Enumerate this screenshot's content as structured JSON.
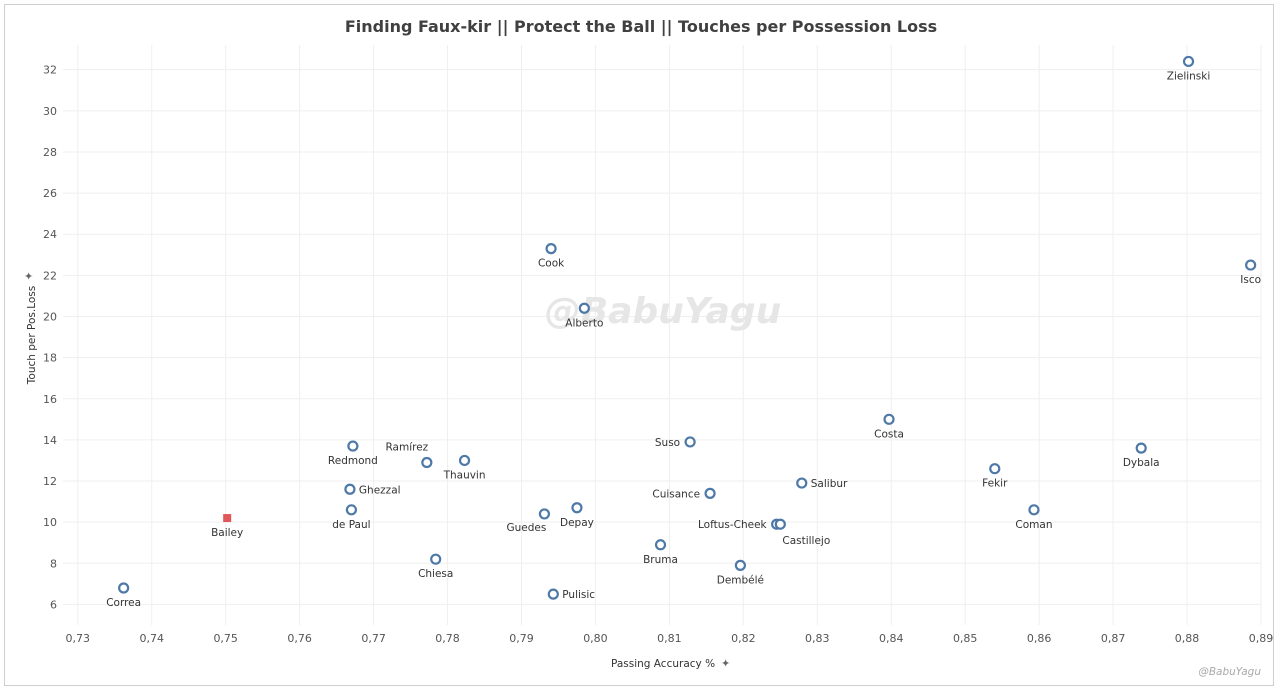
{
  "chart_data": {
    "type": "scatter",
    "title": "Finding Faux-kir  ||  Protect the Ball  ||  Touches per Possession Loss",
    "xlabel": "Passing Accuracy %",
    "ylabel": "Touch per Pos.Loss",
    "xlim": [
      0.728,
      0.89
    ],
    "ylim": [
      5,
      33.2
    ],
    "xticks": [
      0.73,
      0.74,
      0.75,
      0.76,
      0.77,
      0.78,
      0.79,
      0.8,
      0.81,
      0.82,
      0.83,
      0.84,
      0.85,
      0.86,
      0.87,
      0.88,
      0.89
    ],
    "xtick_labels": [
      "0,73",
      "0,74",
      "0,75",
      "0,76",
      "0,77",
      "0,78",
      "0,79",
      "0,80",
      "0,81",
      "0,82",
      "0,83",
      "0,84",
      "0,85",
      "0,86",
      "0,87",
      "0,88",
      "0,89"
    ],
    "yticks": [
      6,
      8,
      10,
      12,
      14,
      16,
      18,
      20,
      22,
      24,
      26,
      28,
      30,
      32
    ],
    "ytick_labels": [
      "6",
      "8",
      "10",
      "12",
      "14",
      "16",
      "18",
      "20",
      "22",
      "24",
      "26",
      "28",
      "30",
      "32"
    ],
    "grid": true,
    "watermark": "@BabuYagu",
    "credit": "@BabuYagu",
    "colors": {
      "point": "#4e79a7",
      "highlight": "#e15759",
      "text": "#333333"
    },
    "points": [
      {
        "name": "Zielinski",
        "x": 0.8802,
        "y": 32.4,
        "label_pos": "below"
      },
      {
        "name": "Isco",
        "x": 0.8886,
        "y": 22.5,
        "label_pos": "below"
      },
      {
        "name": "Cook",
        "x": 0.794,
        "y": 23.3,
        "label_pos": "below"
      },
      {
        "name": "Alberto",
        "x": 0.7985,
        "y": 20.4,
        "label_pos": "below"
      },
      {
        "name": "Costa",
        "x": 0.8397,
        "y": 15.0,
        "label_pos": "below"
      },
      {
        "name": "Suso",
        "x": 0.8128,
        "y": 13.9,
        "label_pos": "left"
      },
      {
        "name": "Dybala",
        "x": 0.8738,
        "y": 13.6,
        "label_pos": "below"
      },
      {
        "name": "Redmond",
        "x": 0.7672,
        "y": 13.7,
        "label_pos": "below"
      },
      {
        "name": "Ramírez",
        "x": 0.7772,
        "y": 12.9,
        "label_pos": "above"
      },
      {
        "name": "Thauvin",
        "x": 0.7823,
        "y": 13.0,
        "label_pos": "below"
      },
      {
        "name": "Fekir",
        "x": 0.854,
        "y": 12.6,
        "label_pos": "below"
      },
      {
        "name": "Salibur",
        "x": 0.8279,
        "y": 11.9,
        "label_pos": "right"
      },
      {
        "name": "Ghezzal",
        "x": 0.7668,
        "y": 11.6,
        "label_pos": "right"
      },
      {
        "name": "Cuisance",
        "x": 0.8155,
        "y": 11.4,
        "label_pos": "left"
      },
      {
        "name": "Coman",
        "x": 0.8593,
        "y": 10.6,
        "label_pos": "below"
      },
      {
        "name": "de Paul",
        "x": 0.767,
        "y": 10.6,
        "label_pos": "below"
      },
      {
        "name": "Depay",
        "x": 0.7975,
        "y": 10.7,
        "label_pos": "below"
      },
      {
        "name": "Guedes",
        "x": 0.7931,
        "y": 10.4,
        "label_pos": "below-left"
      },
      {
        "name": "Bailey",
        "x": 0.7502,
        "y": 10.2,
        "label_pos": "below",
        "highlight": true
      },
      {
        "name": "Loftus-Cheek",
        "x": 0.8245,
        "y": 9.9,
        "label_pos": "left"
      },
      {
        "name": "Castillejo",
        "x": 0.825,
        "y": 9.9,
        "label_pos": "below-right"
      },
      {
        "name": "Bruma",
        "x": 0.8088,
        "y": 8.9,
        "label_pos": "below"
      },
      {
        "name": "Chiesa",
        "x": 0.7784,
        "y": 8.2,
        "label_pos": "below"
      },
      {
        "name": "Dembélé",
        "x": 0.8196,
        "y": 7.9,
        "label_pos": "below"
      },
      {
        "name": "Correa",
        "x": 0.7362,
        "y": 6.8,
        "label_pos": "below"
      },
      {
        "name": "Pulisic",
        "x": 0.7943,
        "y": 6.5,
        "label_pos": "right"
      }
    ]
  }
}
